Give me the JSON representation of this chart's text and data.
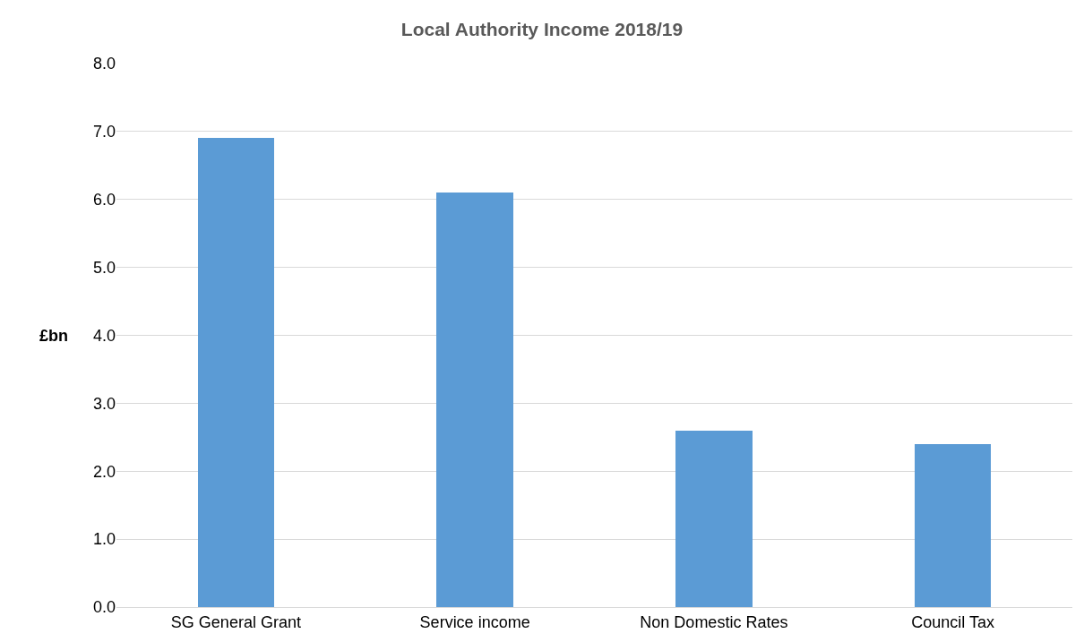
{
  "chart_data": {
    "type": "bar",
    "title": "Local Authority Income 2018/19",
    "ylabel": "£bn",
    "categories": [
      "SG General Grant",
      "Service income",
      "Non Domestic Rates",
      "Council Tax"
    ],
    "values": [
      6.9,
      6.1,
      2.6,
      2.4
    ],
    "color": "#5b9bd5",
    "ylim": [
      0,
      8
    ],
    "yticks": [
      {
        "value": 0,
        "label": "0.0"
      },
      {
        "value": 1,
        "label": "1.0"
      },
      {
        "value": 2,
        "label": "2.0"
      },
      {
        "value": 3,
        "label": "3.0"
      },
      {
        "value": 4,
        "label": "4.0"
      },
      {
        "value": 5,
        "label": "5.0"
      },
      {
        "value": 6,
        "label": "6.0"
      },
      {
        "value": 7,
        "label": "7.0"
      },
      {
        "value": 8,
        "label": "8.0"
      }
    ],
    "grid": "y"
  }
}
